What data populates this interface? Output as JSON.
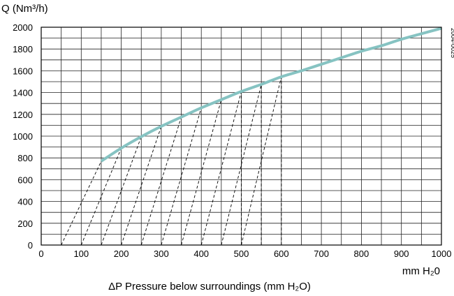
{
  "chart_data": {
    "type": "line",
    "ylabel": "Q (Nm³/h)",
    "xunit_label": "mm H₂0",
    "xlabel": "ΔP Pressure below surroundings (mm H₂O)",
    "figure_code": "2004-0025",
    "xlim": [
      0,
      1000
    ],
    "ylim": [
      0,
      2000
    ],
    "x_ticks": [
      "0",
      "100",
      "200",
      "300",
      "400",
      "500",
      "600",
      "700",
      "800",
      "900",
      "1000"
    ],
    "y_ticks": [
      "0",
      "200",
      "400",
      "600",
      "800",
      "1000",
      "1200",
      "1400",
      "1600",
      "1800",
      "2000"
    ],
    "grid": true,
    "curve_color": "#86c3c2",
    "series": [
      {
        "x": [
          150,
          200,
          250,
          300,
          350,
          400,
          450,
          500,
          550,
          600,
          650,
          700,
          750,
          800,
          850,
          900,
          950,
          1000
        ],
        "y": [
          770,
          890,
          995,
          1090,
          1175,
          1260,
          1335,
          1410,
          1475,
          1545,
          1600,
          1660,
          1720,
          1780,
          1830,
          1890,
          1940,
          1990
        ]
      }
    ],
    "dashed_lines": [
      {
        "from": [
          50,
          0
        ],
        "to": [
          150,
          770
        ]
      },
      {
        "from": [
          100,
          0
        ],
        "to": [
          200,
          890
        ]
      },
      {
        "from": [
          150,
          0
        ],
        "to": [
          250,
          995
        ]
      },
      {
        "from": [
          200,
          0
        ],
        "to": [
          300,
          1090
        ]
      },
      {
        "from": [
          250,
          0
        ],
        "to": [
          350,
          1175
        ]
      },
      {
        "from": [
          300,
          0
        ],
        "to": [
          400,
          1260
        ]
      },
      {
        "from": [
          350,
          0
        ],
        "to": [
          450,
          1335
        ]
      },
      {
        "from": [
          400,
          0
        ],
        "to": [
          500,
          1410
        ]
      },
      {
        "from": [
          450,
          0
        ],
        "to": [
          550,
          1475
        ]
      },
      {
        "from": [
          500,
          0
        ],
        "to": [
          600,
          1545
        ]
      },
      {
        "from": [
          500,
          0
        ],
        "to": [
          500,
          1410
        ]
      },
      {
        "from": [
          550,
          0
        ],
        "to": [
          550,
          1475
        ]
      },
      {
        "from": [
          600,
          0
        ],
        "to": [
          600,
          1545
        ]
      }
    ]
  }
}
